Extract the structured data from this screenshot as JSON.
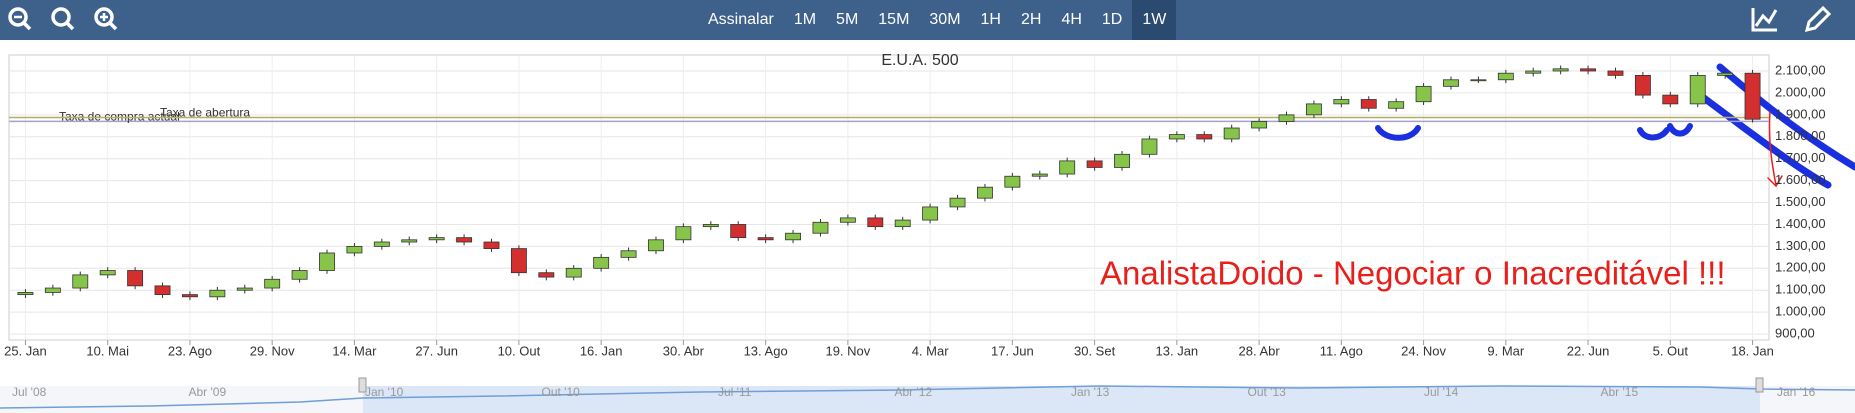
{
  "toolbar": {
    "buttons": [
      "Assinalar",
      "1M",
      "5M",
      "15M",
      "30M",
      "1H",
      "2H",
      "4H",
      "1D",
      "1W"
    ],
    "active": 9
  },
  "chart_data": {
    "type": "candlestick",
    "title": "E.U.A. 500",
    "annotation": "AnalistaDoido - Negociar o Inacreditável !!!",
    "up_color": "#86c44a",
    "down_color": "#d32f2f",
    "grid": true,
    "ylim": [
      873,
      2173
    ],
    "yticks": [
      {
        "value": 900,
        "label": "900,00"
      },
      {
        "value": 1000,
        "label": "1.000,00"
      },
      {
        "value": 1100,
        "label": "1.100,00"
      },
      {
        "value": 1200,
        "label": "1.200,00"
      },
      {
        "value": 1300,
        "label": "1.300,00"
      },
      {
        "value": 1400,
        "label": "1.400,00"
      },
      {
        "value": 1500,
        "label": "1.500,00"
      },
      {
        "value": 1600,
        "label": "1.600,00"
      },
      {
        "value": 1700,
        "label": "1.700,00"
      },
      {
        "value": 1800,
        "label": "1.800,00"
      },
      {
        "value": 1900,
        "label": "1.900,00"
      },
      {
        "value": 2000,
        "label": "2.000,00"
      },
      {
        "value": 2100,
        "label": "2.100,00"
      }
    ],
    "xlim": [
      -0.6,
      63.6
    ],
    "xticks": [
      {
        "value": 0,
        "label": "25. Jan"
      },
      {
        "value": 3,
        "label": "10. Mai"
      },
      {
        "value": 6,
        "label": "23. Ago"
      },
      {
        "value": 9,
        "label": "29. Nov"
      },
      {
        "value": 12,
        "label": "14. Mar"
      },
      {
        "value": 15,
        "label": "27. Jun"
      },
      {
        "value": 18,
        "label": "10. Out"
      },
      {
        "value": 21,
        "label": "16. Jan"
      },
      {
        "value": 24,
        "label": "30. Abr"
      },
      {
        "value": 27,
        "label": "13. Ago"
      },
      {
        "value": 30,
        "label": "19. Nov"
      },
      {
        "value": 33,
        "label": "4. Mar"
      },
      {
        "value": 36,
        "label": "17. Jun"
      },
      {
        "value": 39,
        "label": "30. Set"
      },
      {
        "value": 42,
        "label": "13. Jan"
      },
      {
        "value": 45,
        "label": "28. Abr"
      },
      {
        "value": 48,
        "label": "11. Ago"
      },
      {
        "value": 51,
        "label": "24. Nov"
      },
      {
        "value": 54,
        "label": "9. Mar"
      },
      {
        "value": 57,
        "label": "22. Jun"
      },
      {
        "value": 60,
        "label": "5. Out"
      },
      {
        "value": 63,
        "label": "18. Jan"
      }
    ],
    "open": [
      1080,
      1090,
      1110,
      1170,
      1190,
      1120,
      1080,
      1070,
      1100,
      1110,
      1150,
      1190,
      1270,
      1300,
      1320,
      1330,
      1340,
      1320,
      1290,
      1180,
      1160,
      1200,
      1250,
      1280,
      1330,
      1390,
      1400,
      1340,
      1330,
      1360,
      1410,
      1430,
      1390,
      1420,
      1480,
      1520,
      1570,
      1620,
      1630,
      1690,
      1660,
      1720,
      1790,
      1810,
      1790,
      1840,
      1870,
      1900,
      1950,
      1970,
      1930,
      1960,
      2030,
      2060,
      2060,
      2090,
      2100,
      2110,
      2100,
      2080,
      1990,
      1950,
      2080,
      2090
    ],
    "high": [
      1105,
      1125,
      1185,
      1205,
      1205,
      1135,
      1095,
      1115,
      1125,
      1165,
      1205,
      1285,
      1315,
      1335,
      1345,
      1355,
      1355,
      1335,
      1305,
      1195,
      1215,
      1265,
      1295,
      1345,
      1405,
      1415,
      1415,
      1355,
      1375,
      1425,
      1445,
      1445,
      1435,
      1495,
      1535,
      1585,
      1635,
      1645,
      1705,
      1705,
      1735,
      1805,
      1825,
      1825,
      1855,
      1885,
      1915,
      1965,
      1985,
      1985,
      1975,
      2045,
      2075,
      2075,
      2105,
      2115,
      2125,
      2125,
      2115,
      2095,
      2005,
      2095,
      2105,
      2105
    ],
    "low": [
      1065,
      1075,
      1095,
      1155,
      1105,
      1065,
      1055,
      1055,
      1085,
      1095,
      1135,
      1175,
      1255,
      1285,
      1305,
      1315,
      1305,
      1275,
      1165,
      1145,
      1145,
      1185,
      1235,
      1265,
      1315,
      1375,
      1325,
      1315,
      1315,
      1345,
      1395,
      1375,
      1375,
      1405,
      1465,
      1505,
      1555,
      1605,
      1615,
      1645,
      1645,
      1705,
      1775,
      1775,
      1775,
      1825,
      1855,
      1885,
      1935,
      1915,
      1915,
      1945,
      2015,
      2045,
      2045,
      2075,
      2085,
      2085,
      2065,
      1975,
      1935,
      1935,
      2065,
      1865
    ],
    "close": [
      1090,
      1110,
      1170,
      1190,
      1120,
      1080,
      1070,
      1100,
      1110,
      1150,
      1190,
      1270,
      1300,
      1320,
      1330,
      1340,
      1320,
      1290,
      1180,
      1160,
      1200,
      1250,
      1280,
      1330,
      1390,
      1400,
      1340,
      1330,
      1360,
      1410,
      1430,
      1390,
      1420,
      1480,
      1520,
      1570,
      1620,
      1630,
      1690,
      1660,
      1720,
      1790,
      1810,
      1790,
      1840,
      1870,
      1900,
      1950,
      1970,
      1930,
      1960,
      2030,
      2060,
      2060,
      2090,
      2100,
      2110,
      2100,
      2080,
      1990,
      1950,
      2080,
      2090,
      1880
    ],
    "lines": [
      {
        "name": "Taxa de compra actual",
        "value": 1870,
        "color": "#a8a0cc"
      },
      {
        "name": "Taxa de abertura",
        "value": 1888,
        "color": "#b3ae64"
      }
    ]
  },
  "navigator": {
    "labels": [
      "Jul '08",
      "Abr '09",
      "Jan '10",
      "Out '10",
      "Jul '11",
      "Abr '12",
      "Jan '13",
      "Out '13",
      "Jul '14",
      "Abr '15",
      "Jan '16"
    ]
  }
}
